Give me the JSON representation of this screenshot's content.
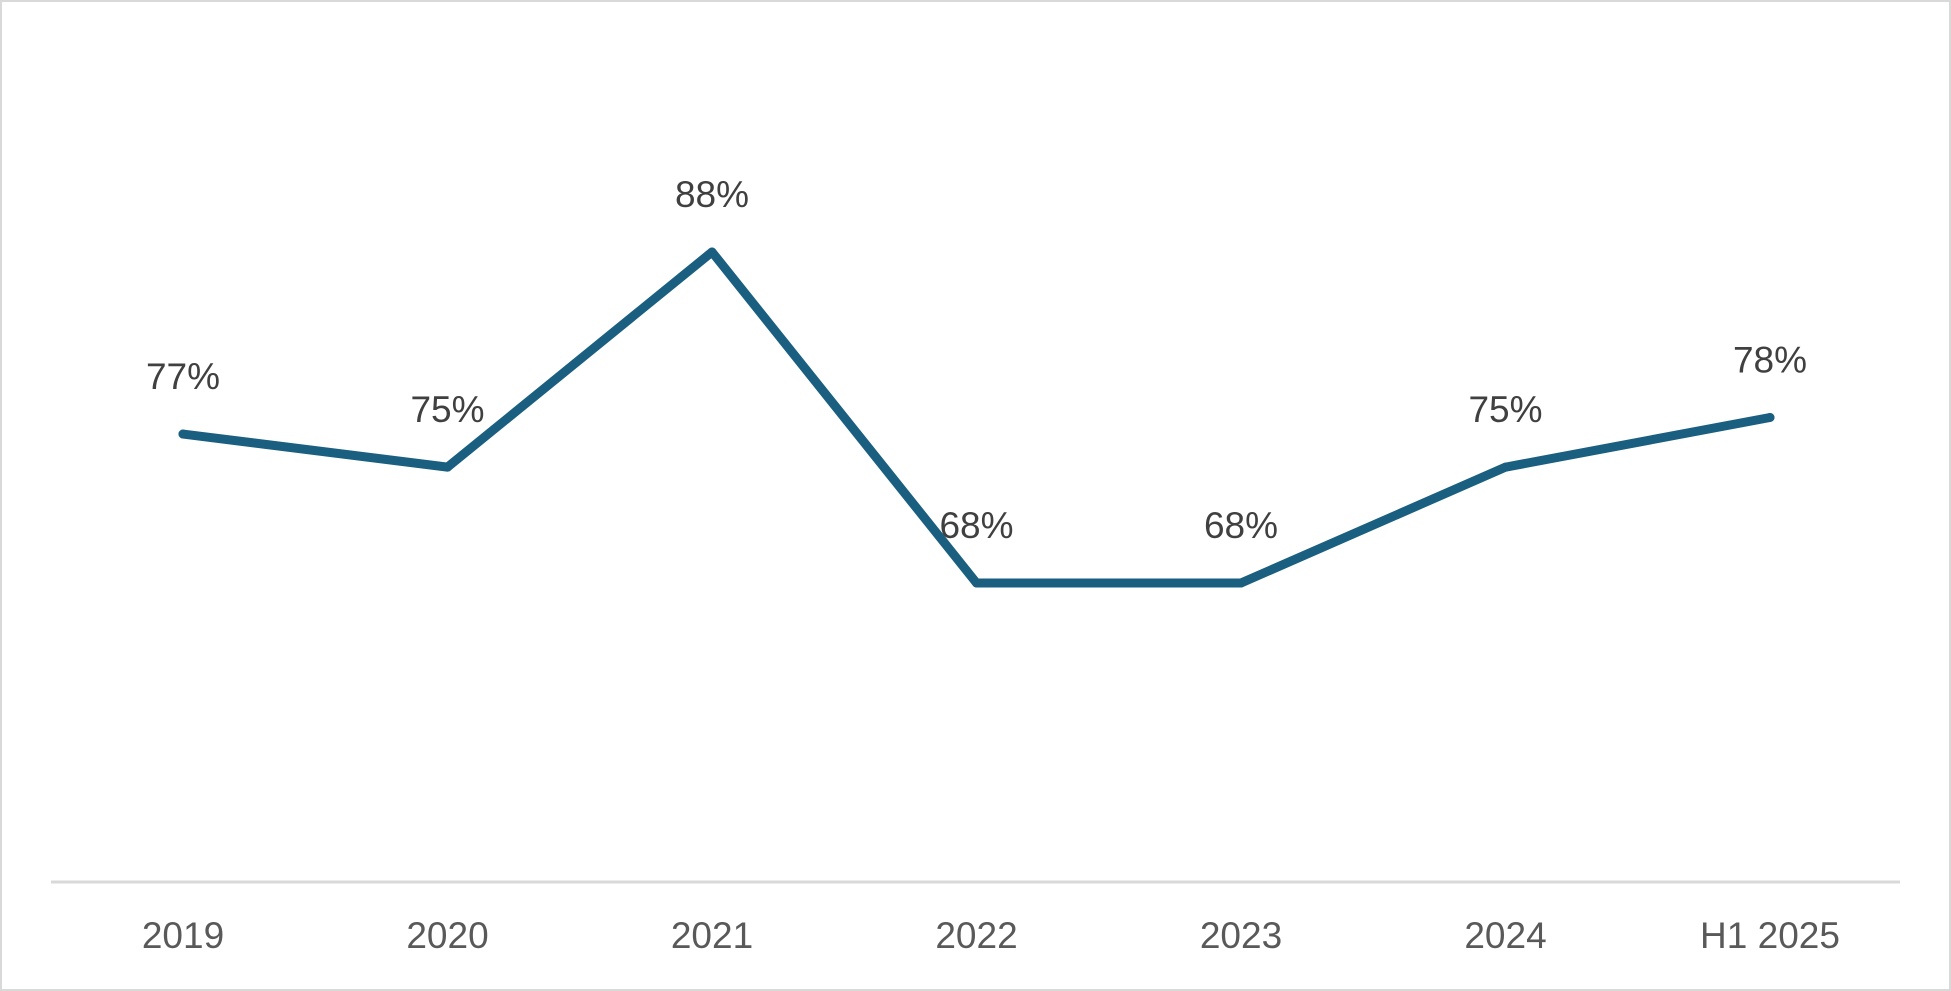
{
  "chart_data": {
    "type": "line",
    "categories": [
      "2019",
      "2020",
      "2021",
      "2022",
      "2023",
      "2024",
      "H1 2025"
    ],
    "series": [
      {
        "values": [
          77,
          75,
          88,
          68,
          68,
          75,
          78
        ],
        "labels": [
          "77%",
          "75%",
          "88%",
          "68%",
          "68%",
          "75%",
          "78%"
        ],
        "color": "#1a5e80"
      }
    ],
    "value_unit": "%",
    "ylim": [
      40,
      100
    ],
    "grid": false,
    "legend": "none",
    "axis_color": "#d9d9d9"
  }
}
